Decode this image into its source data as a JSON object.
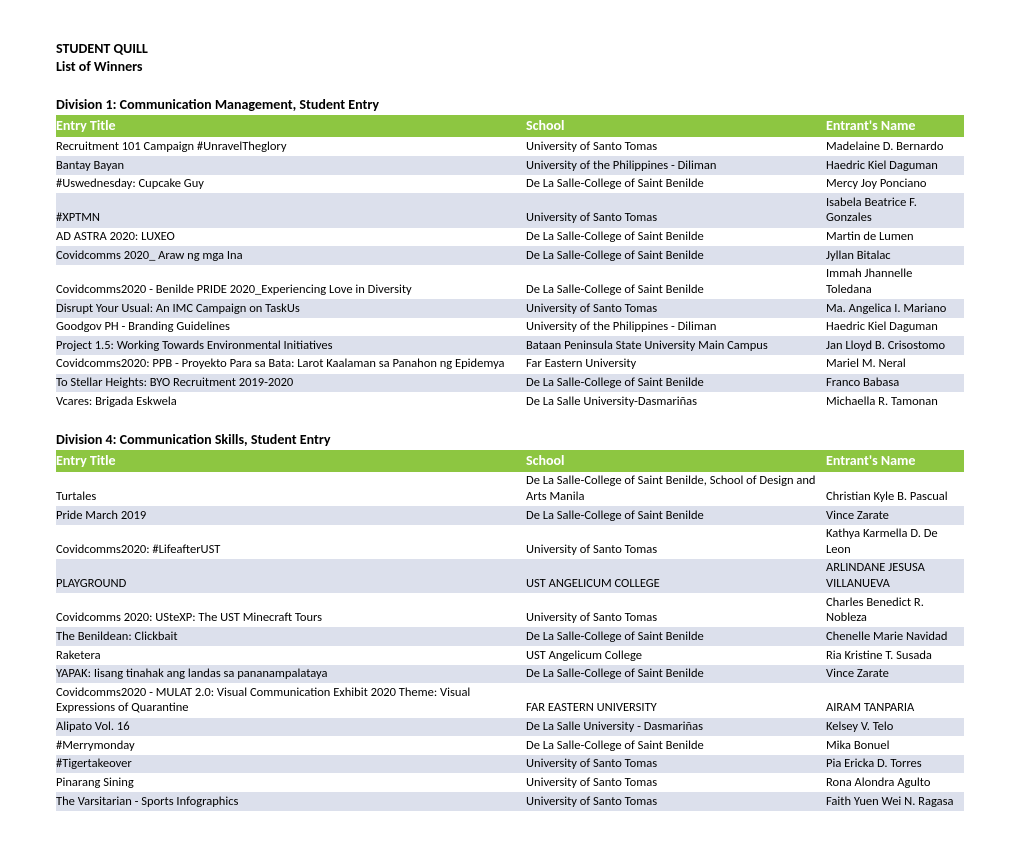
{
  "document": {
    "title_line1": "STUDENT QUILL",
    "title_line2": "List of Winners"
  },
  "colors": {
    "header_bg": "#8dc641",
    "header_text": "#ffffff",
    "row_even_bg": "#ffffff",
    "row_odd_bg": "#dce0ec",
    "text": "#000000"
  },
  "column_headers": {
    "col1": "Entry Title",
    "col2": "School",
    "col3": "Entrant's Name"
  },
  "sections": [
    {
      "title": "Division 1: Communication Management, Student Entry",
      "rows": [
        {
          "title": "Recruitment 101 Campaign #UnravelTheglory",
          "school": "University of Santo Tomas",
          "entrant": "Madelaine D. Bernardo"
        },
        {
          "title": "Bantay Bayan",
          "school": "University of the Philippines - Diliman",
          "entrant": "Haedric Kiel Daguman"
        },
        {
          "title": "#Uswednesday: Cupcake Guy",
          "school": "De La Salle-College of Saint Benilde",
          "entrant": "Mercy Joy Ponciano"
        },
        {
          "title": "#XPTMN",
          "school": "University of Santo Tomas",
          "entrant": "Isabela Beatrice F. Gonzales"
        },
        {
          "title": "AD ASTRA 2020: LUXEO",
          "school": "De La Salle-College of Saint Benilde",
          "entrant": "Martin de Lumen"
        },
        {
          "title": "Covidcomms 2020_ Araw ng mga Ina",
          "school": "De La Salle-College of Saint Benilde",
          "entrant": "Jyllan Bitalac"
        },
        {
          "title": "Covidcomms2020 - Benilde PRIDE 2020_Experiencing Love in Diversity",
          "school": "De La Salle-College of Saint Benilde",
          "entrant": "Immah Jhannelle Toledana"
        },
        {
          "title": "Disrupt Your Usual: An IMC Campaign on TaskUs",
          "school": "University of Santo Tomas",
          "entrant": "Ma. Angelica I. Mariano"
        },
        {
          "title": "Goodgov PH - Branding Guidelines",
          "school": "University of the Philippines - Diliman",
          "entrant": "Haedric Kiel Daguman"
        },
        {
          "title": "Project 1.5: Working Towards Environmental Initiatives",
          "school": "Bataan Peninsula State University Main Campus",
          "entrant": "Jan Lloyd B. Crisostomo"
        },
        {
          "title": "Covidcomms2020: PPB - Proyekto Para sa Bata: Larot Kaalaman sa Panahon ng Epidemya",
          "school": "Far Eastern University",
          "entrant": "Mariel M. Neral"
        },
        {
          "title": "To Stellar Heights: BYO Recruitment 2019-2020",
          "school": "De La Salle-College of Saint Benilde",
          "entrant": "Franco Babasa"
        },
        {
          "title": "Vcares: Brigada Eskwela",
          "school": "De La Salle University-Dasmariñas",
          "entrant": "Michaella R. Tamonan"
        }
      ]
    },
    {
      "title": "Division 4: Communication Skills, Student Entry",
      "rows": [
        {
          "title": "Turtales",
          "school": "De La Salle-College of Saint Benilde, School of Design and Arts Manila",
          "entrant": "Christian Kyle B. Pascual"
        },
        {
          "title": "Pride March 2019",
          "school": "De La Salle-College of Saint Benilde",
          "entrant": "Vince Zarate"
        },
        {
          "title": "Covidcomms2020: #LifeafterUST",
          "school": "University of Santo Tomas",
          "entrant": "Kathya Karmella D. De Leon"
        },
        {
          "title": "PLAYGROUND",
          "school": "UST ANGELICUM COLLEGE",
          "entrant": "ARLINDANE JESUSA VILLANUEVA"
        },
        {
          "title": "Covidcomms 2020: USteXP: The UST Minecraft Tours",
          "school": "University of Santo Tomas",
          "entrant": "Charles Benedict R. Nobleza"
        },
        {
          "title": "The Benildean: Clickbait",
          "school": "De La Salle-College of Saint Benilde",
          "entrant": "Chenelle Marie Navidad"
        },
        {
          "title": "Raketera",
          "school": "UST Angelicum College",
          "entrant": "Ria Kristine T. Susada"
        },
        {
          "title": "YAPAK: Iisang tinahak ang landas sa pananampalataya",
          "school": "De La Salle-College of Saint Benilde",
          "entrant": "Vince Zarate"
        },
        {
          "title": "Covidcomms2020 - MULAT 2.0: Visual Communication Exhibit 2020 Theme: Visual Expressions of Quarantine",
          "school": "FAR EASTERN UNIVERSITY",
          "entrant": "AIRAM TANPARIA"
        },
        {
          "title": "Alipato Vol. 16",
          "school": "De La Salle University - Dasmariñas",
          "entrant": "Kelsey V. Telo"
        },
        {
          "title": "#Merrymonday",
          "school": "De La Salle-College of Saint Benilde",
          "entrant": "Mika Bonuel"
        },
        {
          "title": "#Tigertakeover",
          "school": "University of Santo Tomas",
          "entrant": "Pia Ericka D. Torres"
        },
        {
          "title": "Pinarang Sining",
          "school": "University of Santo Tomas",
          "entrant": "Rona Alondra Agulto"
        },
        {
          "title": "The Varsitarian - Sports Infographics",
          "school": "University of Santo Tomas",
          "entrant": "Faith Yuen Wei N. Ragasa"
        }
      ]
    }
  ]
}
